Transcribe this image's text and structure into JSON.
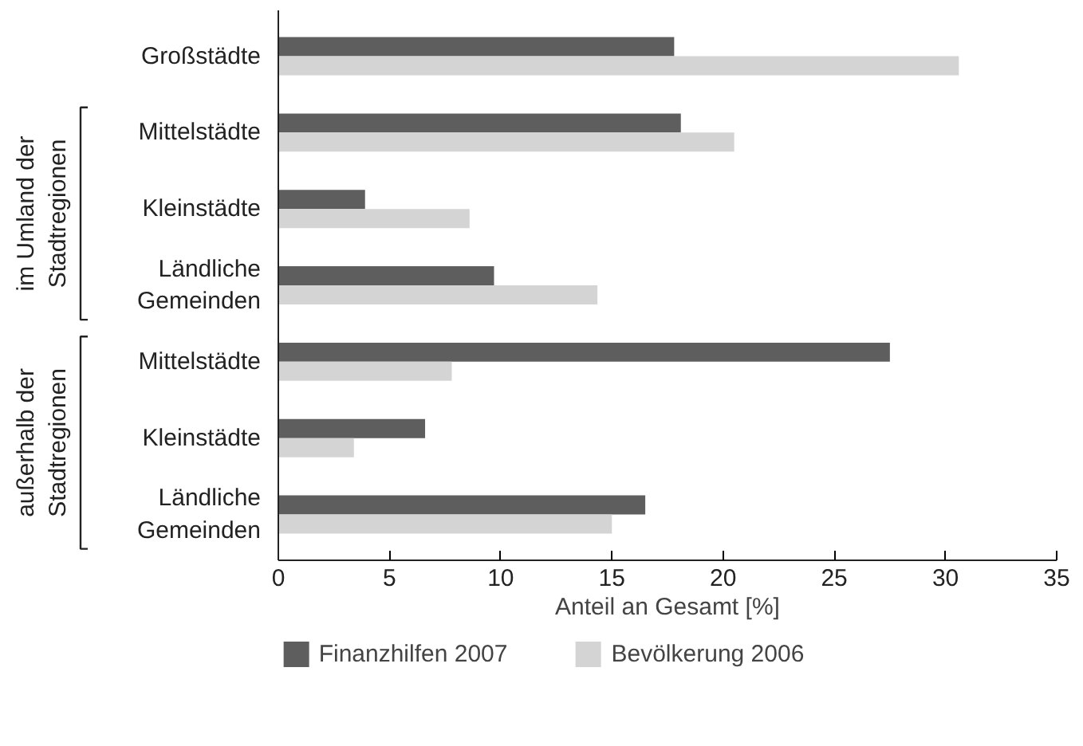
{
  "chart_data": {
    "type": "bar",
    "orientation": "horizontal",
    "xlabel": "Anteil an Gesamt [%]",
    "categories": [
      "Großstädte",
      "Mittelstädte",
      "Kleinstädte",
      "Ländliche\nGemeinden",
      "Mittelstädte",
      "Kleinstädte",
      "Ländliche\nGemeinden"
    ],
    "series": [
      {
        "name": "Finanzhilfen 2007",
        "color": "#5e5e5e",
        "values": [
          17.8,
          18.1,
          3.9,
          9.7,
          27.5,
          6.6,
          16.5
        ]
      },
      {
        "name": "Bevölkerung 2006",
        "color": "#d4d4d4",
        "values": [
          30.6,
          20.5,
          8.6,
          14.35,
          7.8,
          3.4,
          15.0
        ]
      }
    ],
    "annotations": [
      "im Umland der\nStadtregionen",
      "außerhalb der\nStadtregionen"
    ],
    "xlim": [
      0,
      35
    ],
    "xticks": [
      0,
      5,
      10,
      15,
      20,
      25,
      30,
      35
    ],
    "grid": false,
    "legend": "bottom"
  }
}
